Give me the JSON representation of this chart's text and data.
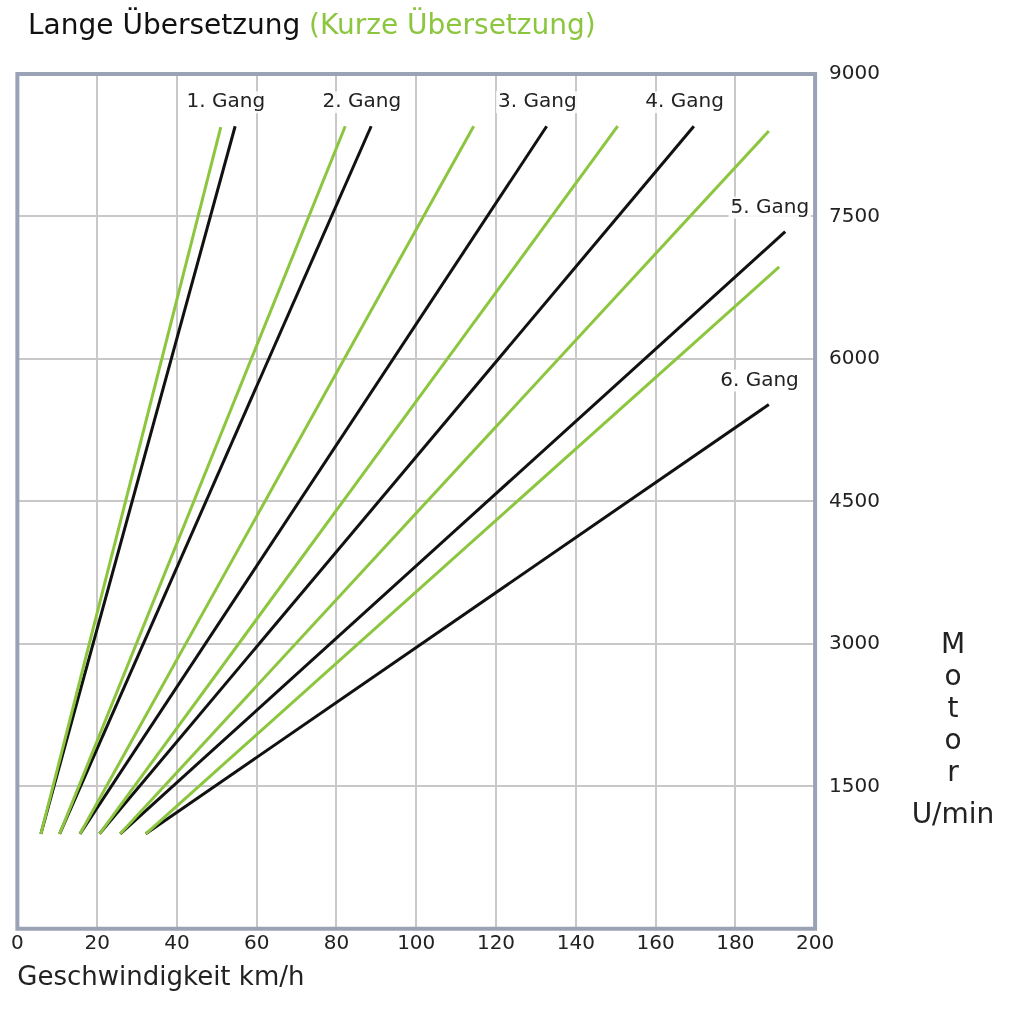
{
  "chart_data": {
    "type": "line",
    "title": "Lange Übersetzung",
    "subtitle": "(Kurze Übersetzung)",
    "xlabel": "Geschwindigkeit km/h",
    "ylabel": "Motor U/min",
    "xlim": [
      0,
      200
    ],
    "xticks": [
      0,
      20,
      40,
      60,
      80,
      100,
      120,
      140,
      160,
      180,
      200
    ],
    "ylim": [
      0,
      9000
    ],
    "yticks": [
      1500,
      3000,
      4500,
      6000,
      7500,
      9000
    ],
    "grid": true,
    "legend": false,
    "marker": "none",
    "line_style": "solid",
    "series": [
      {
        "color": "#8cc63f",
        "x": [
          5.9,
          51.0
        ],
        "values": [
          1000,
          8440
        ]
      },
      {
        "color": "#111111",
        "x": [
          5.9,
          54.6
        ],
        "values": [
          1000,
          8450
        ]
      },
      {
        "color": "#8cc63f",
        "x": [
          10.6,
          82.2
        ],
        "values": [
          1000,
          8450
        ]
      },
      {
        "color": "#111111",
        "x": [
          10.6,
          88.7
        ],
        "values": [
          1000,
          8450
        ]
      },
      {
        "color": "#8cc63f",
        "x": [
          15.7,
          114.4
        ],
        "values": [
          1000,
          8450
        ]
      },
      {
        "color": "#111111",
        "x": [
          15.7,
          132.7
        ],
        "values": [
          1000,
          8450
        ]
      },
      {
        "color": "#8cc63f",
        "x": [
          20.6,
          150.5
        ],
        "values": [
          1000,
          8450
        ]
      },
      {
        "color": "#111111",
        "x": [
          20.6,
          169.6
        ],
        "values": [
          1000,
          8450
        ]
      },
      {
        "color": "#8cc63f",
        "x": [
          25.8,
          188.4
        ],
        "values": [
          1000,
          8400
        ]
      },
      {
        "color": "#111111",
        "x": [
          25.8,
          192.5
        ],
        "values": [
          1000,
          7340
        ]
      },
      {
        "color": "#8cc63f",
        "x": [
          32.2,
          191.0
        ],
        "values": [
          1000,
          6970
        ]
      },
      {
        "color": "#111111",
        "x": [
          32.2,
          188.4
        ],
        "values": [
          1000,
          5520
        ]
      }
    ],
    "annotations": [
      {
        "text": "1. Gang",
        "x": 54.6,
        "y": 8450
      },
      {
        "text": "2. Gang",
        "x": 88.7,
        "y": 8450
      },
      {
        "text": "3. Gang",
        "x": 132.7,
        "y": 8450
      },
      {
        "text": "4. Gang",
        "x": 169.6,
        "y": 8450
      },
      {
        "text": "5. Gang",
        "x": 192.5,
        "y": 7340
      },
      {
        "text": "6. Gang",
        "x": 188.4,
        "y": 5520
      }
    ]
  }
}
